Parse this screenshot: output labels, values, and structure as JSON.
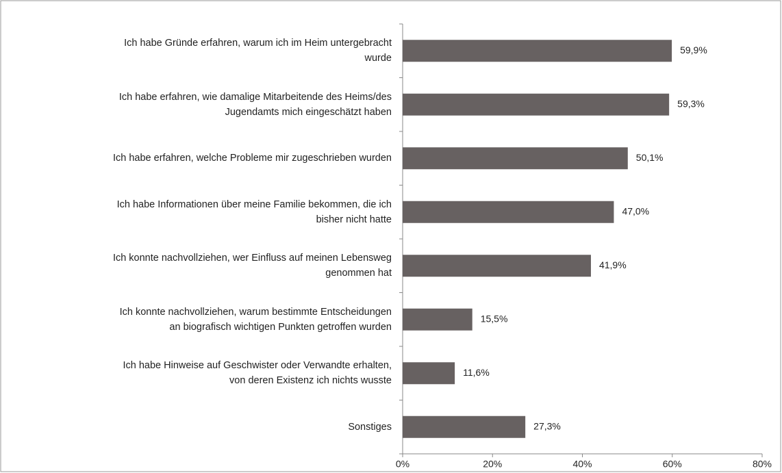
{
  "chart_data": {
    "type": "barh",
    "categories": [
      "Ich habe Gründe erfahren, warum ich im Heim untergebracht\nwurde",
      "Ich habe erfahren, wie damalige Mitarbeitende des Heims/des\nJugendamts mich eingeschätzt haben",
      "Ich habe erfahren, welche Probleme mir zugeschrieben wurden",
      "Ich habe Informationen über meine Familie bekommen, die ich\nbisher nicht hatte",
      "Ich konnte nachvollziehen, wer Einfluss auf meinen Lebensweg\ngenommen hat",
      "Ich konnte nachvollziehen, warum bestimmte Entscheidungen\nan biografisch wichtigen Punkten getroffen wurden",
      "Ich habe Hinweise auf Geschwister oder Verwandte erhalten,\nvon deren Existenz ich nichts wusste",
      "Sonstiges"
    ],
    "values": [
      59.9,
      59.3,
      50.1,
      47.0,
      41.9,
      15.5,
      11.6,
      27.3
    ],
    "value_labels": [
      "59,9%",
      "59,3%",
      "50,1%",
      "47,0%",
      "41,9%",
      "15,5%",
      "11,6%",
      "27,3%"
    ],
    "color": "#676161",
    "xlim": [
      0,
      80
    ],
    "xticks": [
      {
        "value": 0,
        "label": "0%"
      },
      {
        "value": 20,
        "label": "20%"
      },
      {
        "value": 40,
        "label": "40%"
      },
      {
        "value": 60,
        "label": "60%"
      },
      {
        "value": 80,
        "label": "80%"
      }
    ]
  }
}
